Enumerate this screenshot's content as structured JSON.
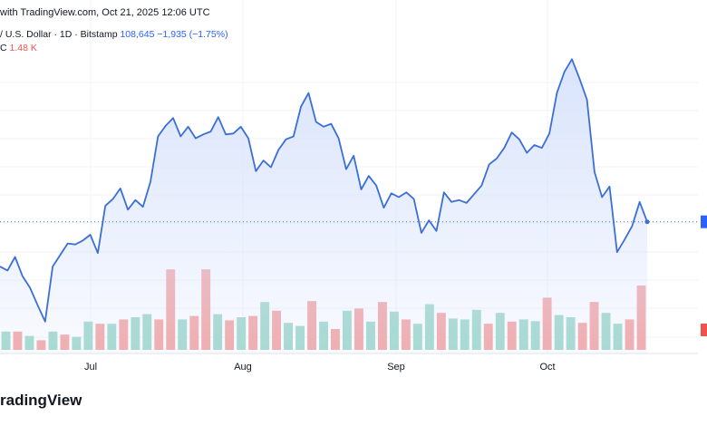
{
  "header": {
    "text": "with TradingView.com, Oct 21, 2025 12:06 UTC"
  },
  "legend": {
    "symbol": "/ U.S. Dollar · 1D · Bitstamp",
    "price": "108,645",
    "change": "−1,935 (−1.75%)",
    "volume_label": "C",
    "volume_value": "1.48 K"
  },
  "logo": {
    "text": "radingView"
  },
  "colors": {
    "line": "#3b6fd6",
    "area": "#d7e2fb",
    "vol_up": "#9fd8cb",
    "vol_down": "#f4a5a4",
    "price_marker": "#2962ff",
    "vol_marker": "#ef5350"
  },
  "chart_data": {
    "type": "area",
    "x_ticks": [
      "Jul",
      "Aug",
      "Sep",
      "Oct"
    ],
    "price_series": [
      104.0,
      103.6,
      105.0,
      103.0,
      101.8,
      100.0,
      98.3,
      104.0,
      105.2,
      106.4,
      106.3,
      106.7,
      107.3,
      105.4,
      110.3,
      111.0,
      112.1,
      109.9,
      110.9,
      110.2,
      112.8,
      117.5,
      118.6,
      119.4,
      117.5,
      118.5,
      117.3,
      117.7,
      118.0,
      119.5,
      117.7,
      117.8,
      118.5,
      117.3,
      113.9,
      115.0,
      114.3,
      116.1,
      117.2,
      117.5,
      120.6,
      122.0,
      119.0,
      118.5,
      118.8,
      117.3,
      114.1,
      115.5,
      112.0,
      113.4,
      112.4,
      110.1,
      111.6,
      111.2,
      111.7,
      111.0,
      107.5,
      108.8,
      107.7,
      111.7,
      110.7,
      110.9,
      110.6,
      111.5,
      112.4,
      114.6,
      115.2,
      116.3,
      117.9,
      117.2,
      115.8,
      116.6,
      116.3,
      117.8,
      122.0,
      124.2,
      125.5,
      123.5,
      121.3,
      113.8,
      111.2,
      112.3,
      105.5,
      106.8,
      108.2,
      110.7,
      108.645
    ],
    "volume_series": [
      0.42,
      0.42,
      0.32,
      0.22,
      0.42,
      0.35,
      0.3,
      0.65,
      0.6,
      0.6,
      0.7,
      0.75,
      0.82,
      0.7,
      1.85,
      0.7,
      0.78,
      1.85,
      0.82,
      0.68,
      0.75,
      0.78,
      1.1,
      0.9,
      0.62,
      0.55,
      1.12,
      0.65,
      0.48,
      0.9,
      0.95,
      0.65,
      1.1,
      0.88,
      0.7,
      0.6,
      1.05,
      0.85,
      0.72,
      0.7,
      0.92,
      0.6,
      0.85,
      0.65,
      0.7,
      0.66,
      1.2,
      0.8,
      0.75,
      0.62,
      1.1,
      0.85,
      0.6,
      0.7,
      1.48
    ],
    "volume_colors": [
      "up",
      "down",
      "up",
      "down",
      "up",
      "down",
      "up",
      "up",
      "down",
      "up",
      "down",
      "up",
      "up",
      "down",
      "down",
      "up",
      "down",
      "down",
      "up",
      "down",
      "up",
      "down",
      "up",
      "down",
      "up",
      "up",
      "down",
      "up",
      "down",
      "up",
      "down",
      "up",
      "down",
      "up",
      "down",
      "up",
      "up",
      "down",
      "up",
      "up",
      "up",
      "down",
      "up",
      "down",
      "up",
      "up",
      "down",
      "up",
      "up",
      "down",
      "down",
      "up",
      "up",
      "down",
      "down"
    ]
  }
}
